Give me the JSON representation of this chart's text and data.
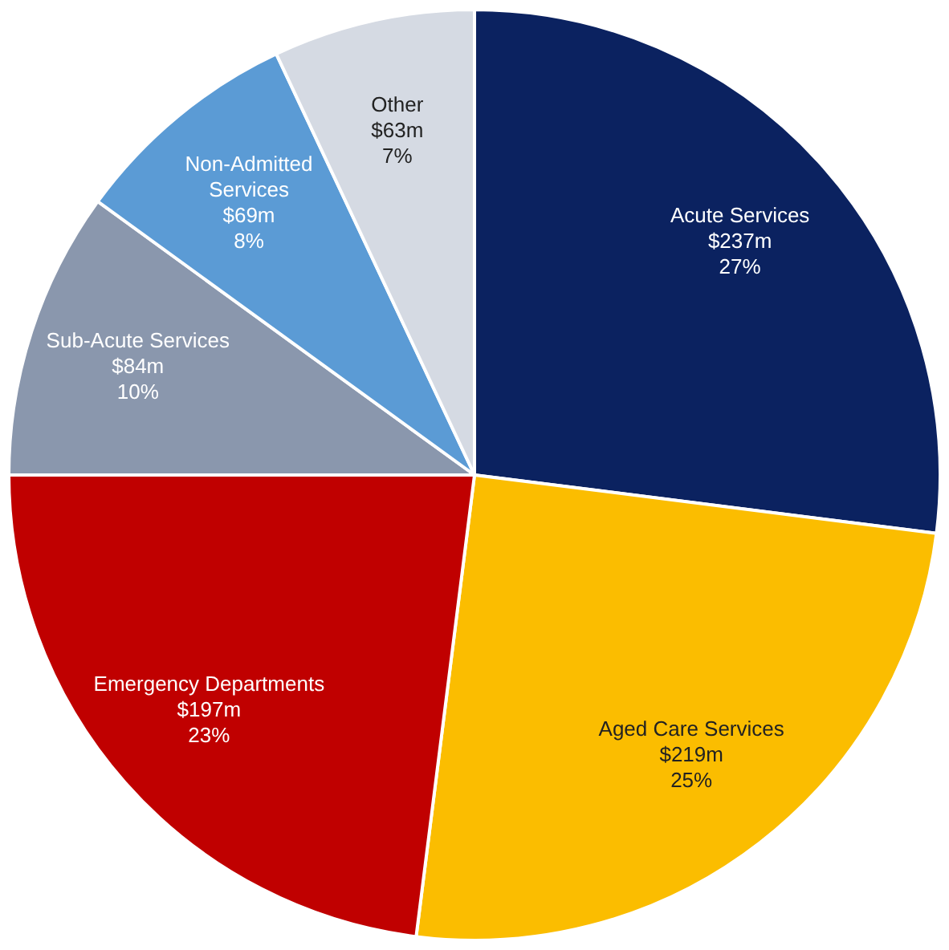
{
  "chart_data": {
    "type": "pie",
    "categories": [
      "Acute Services",
      "Aged Care Services",
      "Emergency Departments",
      "Sub-Acute Services",
      "Non-Admitted\nServices",
      "Other"
    ],
    "values": [
      27,
      25,
      23,
      10,
      8,
      7
    ],
    "value_labels": [
      "$237m\n27%",
      "$219m\n25%",
      "$197m\n23%",
      "$84m\n10%",
      "$69m\n8%",
      "$63m\n7%"
    ],
    "colors": [
      "#0b2260",
      "#fbbd00",
      "#c00000",
      "#8a97ad",
      "#5b9bd5",
      "#d5dae3"
    ],
    "legend": false
  }
}
